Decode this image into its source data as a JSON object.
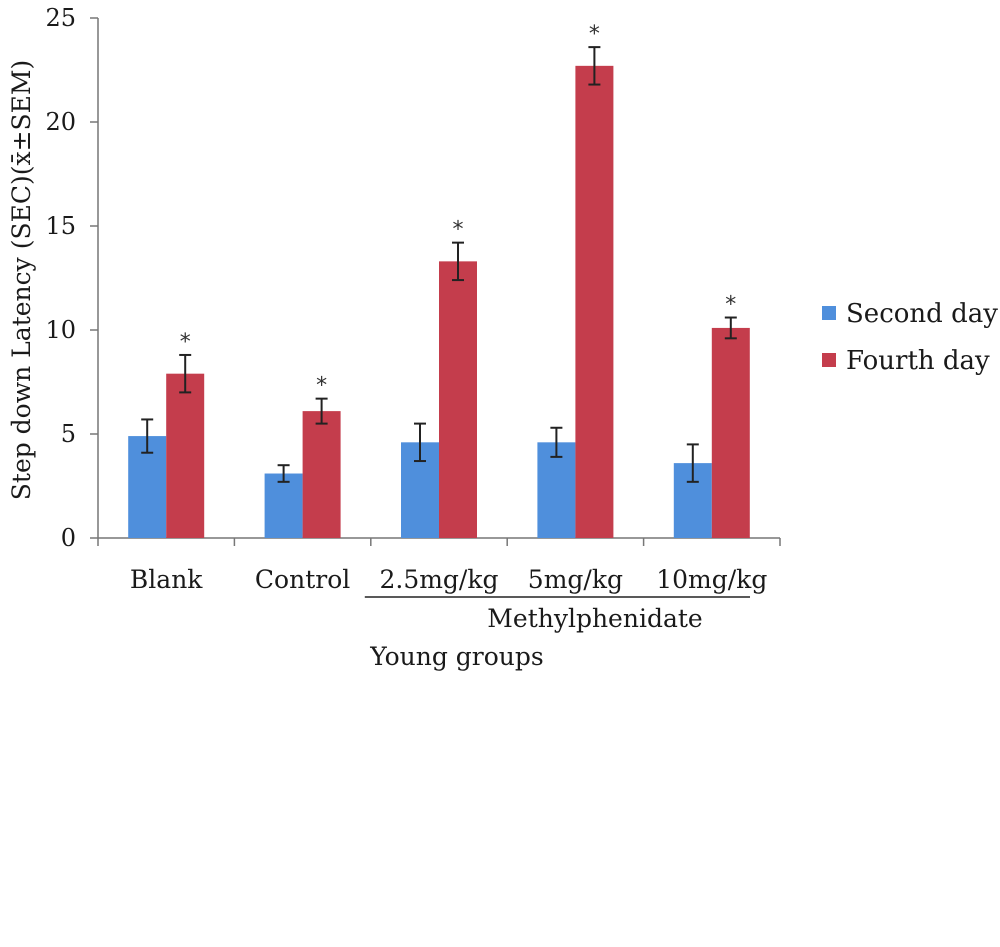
{
  "chart_data": {
    "type": "bar",
    "title": "",
    "ylabel": "Step down Latency (SEC)(x̄±SEM)",
    "xlabel": "Young groups",
    "group_label": "Methylphenidate",
    "group_covers": [
      "2.5mg/kg",
      "5mg/kg",
      "10mg/kg"
    ],
    "ylim": [
      0,
      25
    ],
    "yticks": [
      0,
      5,
      10,
      15,
      20,
      25
    ],
    "grid": false,
    "legend_position": "right",
    "categories": [
      "Blank",
      "Control",
      "2.5mg/kg",
      "5mg/kg",
      "10mg/kg"
    ],
    "series": [
      {
        "name": "Second day",
        "color": "#4f8fdc",
        "values": [
          4.9,
          3.1,
          4.6,
          4.6,
          3.6
        ],
        "errors": [
          0.8,
          0.4,
          0.9,
          0.7,
          0.9
        ],
        "significance": [
          "",
          "",
          "",
          "",
          ""
        ]
      },
      {
        "name": "Fourth day",
        "color": "#c43d4c",
        "values": [
          7.9,
          6.1,
          13.3,
          22.7,
          10.1
        ],
        "errors": [
          0.9,
          0.6,
          0.9,
          0.9,
          0.5
        ],
        "significance": [
          "*",
          "*",
          "*",
          "*",
          "*"
        ]
      }
    ]
  }
}
